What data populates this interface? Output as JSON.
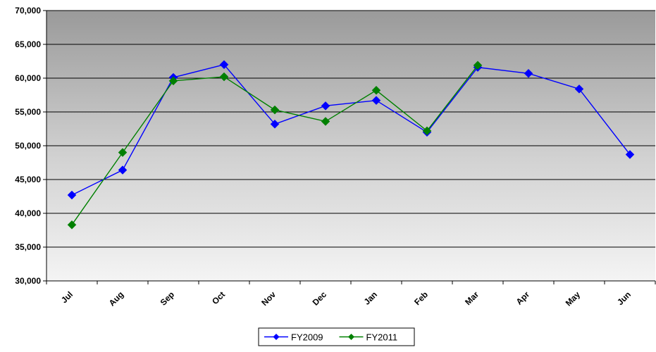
{
  "chart_data": {
    "type": "line",
    "title": "",
    "xlabel": "",
    "ylabel": "",
    "categories": [
      "Jul",
      "Aug",
      "Sep",
      "Oct",
      "Nov",
      "Dec",
      "Jan",
      "Feb",
      "Mar",
      "Apr",
      "May",
      "Jun"
    ],
    "y_tick_labels": [
      "30,000",
      "35,000",
      "40,000",
      "45,000",
      "50,000",
      "55,000",
      "60,000",
      "65,000",
      "70,000"
    ],
    "ylim": [
      30000,
      70000
    ],
    "grid": true,
    "legend_position": "bottom",
    "series": [
      {
        "name": "FY2009",
        "color": "#0000ff",
        "marker": "diamond",
        "values": [
          42700,
          46400,
          60100,
          62000,
          53200,
          55900,
          56700,
          52000,
          61600,
          60700,
          58400,
          48700
        ]
      },
      {
        "name": "FY2011",
        "color": "#008000",
        "marker": "diamond",
        "values": [
          38300,
          49000,
          59600,
          60200,
          55300,
          53600,
          58200,
          52200,
          61900,
          null,
          null,
          null
        ]
      }
    ]
  }
}
